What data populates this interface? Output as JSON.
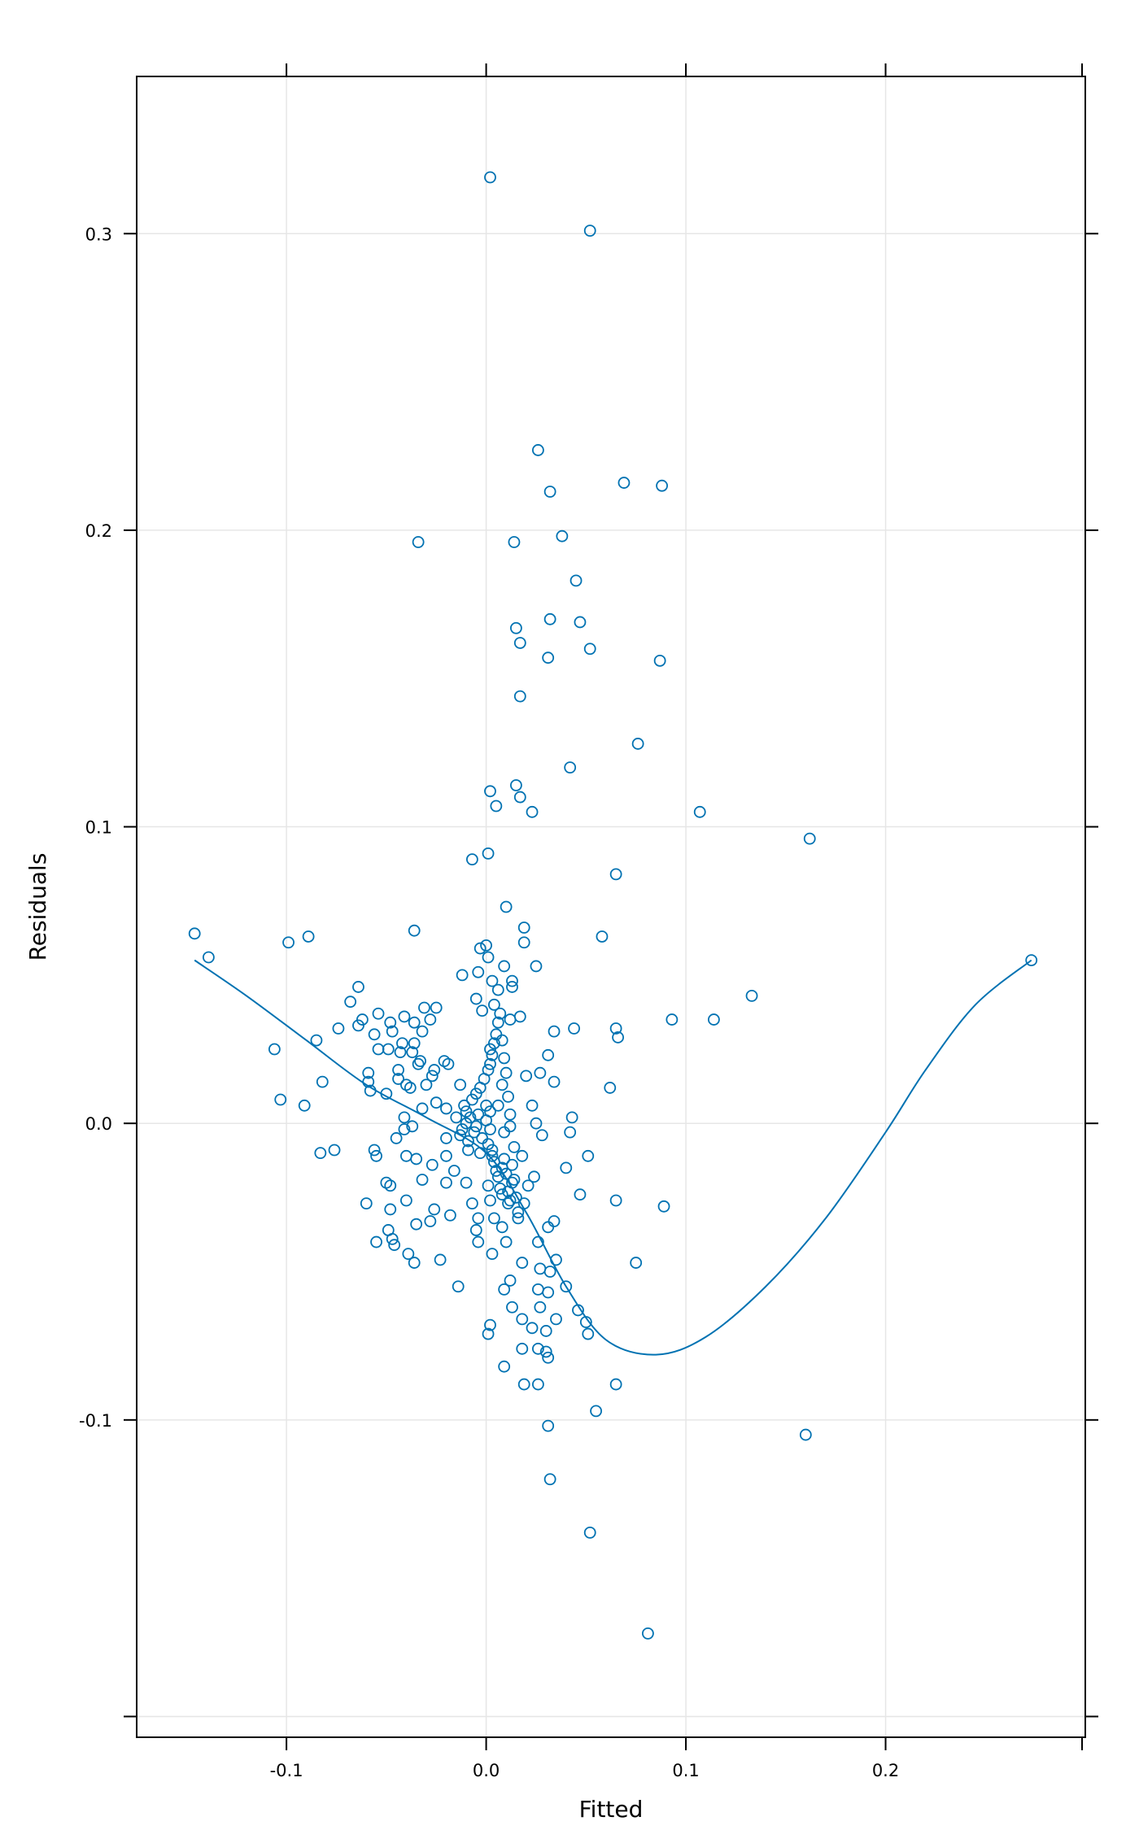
{
  "chart_data": {
    "type": "scatter",
    "xlabel": "Fitted",
    "ylabel": "Residuals",
    "xlim": [
      -0.175,
      0.3
    ],
    "ylim": [
      -0.207,
      0.353
    ],
    "x_ticks": [
      -0.1,
      0.0,
      0.1,
      0.2
    ],
    "x_tick_labels": [
      "-0.1",
      "0.0",
      "0.1",
      "0.2"
    ],
    "y_ticks": [
      -0.2,
      -0.1,
      0.0,
      0.1,
      0.2,
      0.3
    ],
    "y_tick_labels": [
      "",
      "-0.1",
      "0.0",
      "0.1",
      "0.2",
      "0.3"
    ],
    "grid": true,
    "point_color": "#0072b2",
    "line_color": "#0072b2",
    "series": [
      {
        "kind": "points",
        "points": [
          [
            0.002,
            0.319
          ],
          [
            0.052,
            0.301
          ],
          [
            0.026,
            0.227
          ],
          [
            0.069,
            0.216
          ],
          [
            0.088,
            0.215
          ],
          [
            0.032,
            0.213
          ],
          [
            -0.034,
            0.196
          ],
          [
            0.014,
            0.196
          ],
          [
            0.038,
            0.198
          ],
          [
            0.045,
            0.183
          ],
          [
            0.015,
            0.167
          ],
          [
            0.032,
            0.17
          ],
          [
            0.047,
            0.169
          ],
          [
            0.017,
            0.162
          ],
          [
            0.052,
            0.16
          ],
          [
            0.031,
            0.157
          ],
          [
            0.087,
            0.156
          ],
          [
            0.017,
            0.144
          ],
          [
            0.076,
            0.128
          ],
          [
            0.042,
            0.12
          ],
          [
            0.002,
            0.112
          ],
          [
            0.015,
            0.114
          ],
          [
            0.017,
            0.11
          ],
          [
            0.005,
            0.107
          ],
          [
            0.023,
            0.105
          ],
          [
            0.107,
            0.105
          ],
          [
            0.162,
            0.096
          ],
          [
            0.001,
            0.091
          ],
          [
            -0.007,
            0.089
          ],
          [
            0.065,
            0.084
          ],
          [
            0.01,
            0.073
          ],
          [
            0.019,
            0.066
          ],
          [
            -0.036,
            0.065
          ],
          [
            0.058,
            0.063
          ],
          [
            -0.146,
            0.064
          ],
          [
            -0.089,
            0.063
          ],
          [
            -0.099,
            0.061
          ],
          [
            0.019,
            0.061
          ],
          [
            -0.139,
            0.056
          ],
          [
            -0.003,
            0.059
          ],
          [
            0.0,
            0.06
          ],
          [
            0.001,
            0.056
          ],
          [
            0.273,
            0.055
          ],
          [
            0.009,
            0.053
          ],
          [
            0.025,
            0.053
          ],
          [
            -0.004,
            0.051
          ],
          [
            -0.012,
            0.05
          ],
          [
            0.003,
            0.048
          ],
          [
            0.013,
            0.048
          ],
          [
            0.006,
            0.045
          ],
          [
            0.013,
            0.046
          ],
          [
            0.133,
            0.043
          ],
          [
            -0.064,
            0.046
          ],
          [
            -0.005,
            0.042
          ],
          [
            -0.002,
            0.038
          ],
          [
            0.004,
            0.04
          ],
          [
            -0.068,
            0.041
          ],
          [
            -0.041,
            0.036
          ],
          [
            -0.031,
            0.039
          ],
          [
            -0.025,
            0.039
          ],
          [
            -0.054,
            0.037
          ],
          [
            -0.062,
            0.035
          ],
          [
            -0.064,
            0.033
          ],
          [
            -0.048,
            0.034
          ],
          [
            -0.074,
            0.032
          ],
          [
            -0.036,
            0.034
          ],
          [
            -0.028,
            0.035
          ],
          [
            0.093,
            0.035
          ],
          [
            0.114,
            0.035
          ],
          [
            0.012,
            0.035
          ],
          [
            0.017,
            0.036
          ],
          [
            0.044,
            0.032
          ],
          [
            0.034,
            0.031
          ],
          [
            0.065,
            0.032
          ],
          [
            0.066,
            0.029
          ],
          [
            -0.085,
            0.028
          ],
          [
            -0.056,
            0.03
          ],
          [
            -0.047,
            0.031
          ],
          [
            -0.032,
            0.031
          ],
          [
            -0.036,
            0.027
          ],
          [
            -0.042,
            0.027
          ],
          [
            -0.106,
            0.025
          ],
          [
            -0.054,
            0.025
          ],
          [
            -0.049,
            0.025
          ],
          [
            -0.043,
            0.024
          ],
          [
            -0.037,
            0.024
          ],
          [
            -0.021,
            0.021
          ],
          [
            -0.019,
            0.02
          ],
          [
            0.031,
            0.023
          ],
          [
            0.002,
            0.025
          ],
          [
            -0.059,
            0.017
          ],
          [
            -0.044,
            0.018
          ],
          [
            -0.026,
            0.018
          ],
          [
            -0.033,
            0.021
          ],
          [
            -0.034,
            0.02
          ],
          [
            -0.044,
            0.015
          ],
          [
            -0.027,
            0.016
          ],
          [
            -0.059,
            0.014
          ],
          [
            -0.04,
            0.013
          ],
          [
            -0.038,
            0.012
          ],
          [
            -0.03,
            0.013
          ],
          [
            -0.082,
            0.014
          ],
          [
            -0.058,
            0.011
          ],
          [
            -0.05,
            0.01
          ],
          [
            -0.013,
            0.013
          ],
          [
            0.008,
            0.013
          ],
          [
            0.02,
            0.016
          ],
          [
            0.027,
            0.017
          ],
          [
            0.034,
            0.014
          ],
          [
            0.062,
            0.012
          ],
          [
            -0.103,
            0.008
          ],
          [
            -0.091,
            0.006
          ],
          [
            -0.032,
            0.005
          ],
          [
            -0.025,
            0.007
          ],
          [
            -0.02,
            0.005
          ],
          [
            -0.01,
            0.004
          ],
          [
            0.0,
            0.006
          ],
          [
            0.006,
            0.006
          ],
          [
            0.012,
            0.003
          ],
          [
            0.023,
            0.006
          ],
          [
            -0.041,
            0.002
          ],
          [
            -0.041,
            -0.002
          ],
          [
            -0.037,
            -0.001
          ],
          [
            0.043,
            0.002
          ],
          [
            0.025,
            0.0
          ],
          [
            -0.02,
            -0.005
          ],
          [
            -0.012,
            -0.002
          ],
          [
            -0.005,
            -0.001
          ],
          [
            0.002,
            -0.002
          ],
          [
            0.009,
            -0.003
          ],
          [
            0.028,
            -0.004
          ],
          [
            0.042,
            -0.003
          ],
          [
            -0.045,
            -0.005
          ],
          [
            -0.083,
            -0.01
          ],
          [
            -0.076,
            -0.009
          ],
          [
            -0.056,
            -0.009
          ],
          [
            -0.055,
            -0.011
          ],
          [
            -0.04,
            -0.011
          ],
          [
            -0.035,
            -0.012
          ],
          [
            -0.02,
            -0.011
          ],
          [
            -0.009,
            -0.009
          ],
          [
            -0.003,
            -0.01
          ],
          [
            0.003,
            -0.011
          ],
          [
            0.014,
            -0.008
          ],
          [
            0.018,
            -0.011
          ],
          [
            0.051,
            -0.011
          ],
          [
            -0.027,
            -0.014
          ],
          [
            -0.016,
            -0.016
          ],
          [
            0.008,
            -0.015
          ],
          [
            0.04,
            -0.015
          ],
          [
            0.024,
            -0.018
          ],
          [
            -0.032,
            -0.019
          ],
          [
            -0.02,
            -0.02
          ],
          [
            -0.01,
            -0.02
          ],
          [
            0.001,
            -0.021
          ],
          [
            0.013,
            -0.02
          ],
          [
            0.021,
            -0.021
          ],
          [
            -0.05,
            -0.02
          ],
          [
            -0.048,
            -0.021
          ],
          [
            -0.06,
            -0.027
          ],
          [
            -0.04,
            -0.026
          ],
          [
            0.047,
            -0.024
          ],
          [
            0.065,
            -0.026
          ],
          [
            0.089,
            -0.028
          ],
          [
            -0.007,
            -0.027
          ],
          [
            0.002,
            -0.026
          ],
          [
            0.011,
            -0.027
          ],
          [
            0.019,
            -0.027
          ],
          [
            -0.026,
            -0.029
          ],
          [
            -0.048,
            -0.029
          ],
          [
            -0.035,
            -0.034
          ],
          [
            -0.018,
            -0.031
          ],
          [
            -0.004,
            -0.032
          ],
          [
            0.004,
            -0.032
          ],
          [
            0.016,
            -0.032
          ],
          [
            0.034,
            -0.033
          ],
          [
            -0.028,
            -0.033
          ],
          [
            -0.005,
            -0.036
          ],
          [
            0.008,
            -0.035
          ],
          [
            0.031,
            -0.035
          ],
          [
            -0.049,
            -0.036
          ],
          [
            -0.047,
            -0.039
          ],
          [
            -0.055,
            -0.04
          ],
          [
            -0.046,
            -0.041
          ],
          [
            -0.004,
            -0.04
          ],
          [
            0.01,
            -0.04
          ],
          [
            0.026,
            -0.04
          ],
          [
            -0.039,
            -0.044
          ],
          [
            -0.036,
            -0.047
          ],
          [
            -0.023,
            -0.046
          ],
          [
            0.003,
            -0.044
          ],
          [
            0.018,
            -0.047
          ],
          [
            0.035,
            -0.046
          ],
          [
            0.075,
            -0.047
          ],
          [
            0.027,
            -0.049
          ],
          [
            0.032,
            -0.05
          ],
          [
            0.012,
            -0.053
          ],
          [
            -0.014,
            -0.055
          ],
          [
            0.009,
            -0.056
          ],
          [
            0.026,
            -0.056
          ],
          [
            0.031,
            -0.057
          ],
          [
            0.04,
            -0.055
          ],
          [
            0.046,
            -0.063
          ],
          [
            0.013,
            -0.062
          ],
          [
            0.027,
            -0.062
          ],
          [
            0.035,
            -0.066
          ],
          [
            0.018,
            -0.066
          ],
          [
            0.05,
            -0.067
          ],
          [
            0.002,
            -0.068
          ],
          [
            0.023,
            -0.069
          ],
          [
            0.03,
            -0.07
          ],
          [
            0.001,
            -0.071
          ],
          [
            0.051,
            -0.071
          ],
          [
            0.018,
            -0.076
          ],
          [
            0.026,
            -0.076
          ],
          [
            0.03,
            -0.077
          ],
          [
            0.031,
            -0.079
          ],
          [
            0.009,
            -0.082
          ],
          [
            0.019,
            -0.088
          ],
          [
            0.026,
            -0.088
          ],
          [
            0.065,
            -0.088
          ],
          [
            0.055,
            -0.097
          ],
          [
            0.031,
            -0.102
          ],
          [
            0.16,
            -0.105
          ],
          [
            0.032,
            -0.12
          ],
          [
            0.052,
            -0.138
          ],
          [
            0.081,
            -0.172
          ],
          [
            -0.01,
            0.0
          ],
          [
            -0.008,
            0.002
          ],
          [
            -0.006,
            -0.003
          ],
          [
            -0.004,
            0.003
          ],
          [
            -0.002,
            -0.005
          ],
          [
            0.0,
            0.001
          ],
          [
            0.001,
            -0.007
          ],
          [
            0.002,
            0.004
          ],
          [
            0.003,
            -0.009
          ],
          [
            0.004,
            -0.013
          ],
          [
            0.005,
            -0.016
          ],
          [
            0.006,
            -0.018
          ],
          [
            0.007,
            -0.022
          ],
          [
            0.008,
            -0.024
          ],
          [
            0.009,
            -0.012
          ],
          [
            0.01,
            -0.017
          ],
          [
            0.011,
            -0.023
          ],
          [
            0.012,
            -0.026
          ],
          [
            0.013,
            -0.014
          ],
          [
            0.014,
            -0.019
          ],
          [
            0.015,
            -0.025
          ],
          [
            0.016,
            -0.03
          ],
          [
            -0.015,
            0.002
          ],
          [
            -0.013,
            -0.004
          ],
          [
            -0.011,
            0.006
          ],
          [
            -0.009,
            -0.006
          ],
          [
            -0.007,
            0.008
          ],
          [
            -0.005,
            0.01
          ],
          [
            -0.003,
            0.012
          ],
          [
            -0.001,
            0.015
          ],
          [
            0.001,
            0.018
          ],
          [
            0.002,
            0.02
          ],
          [
            0.003,
            0.023
          ],
          [
            0.004,
            0.027
          ],
          [
            0.005,
            0.03
          ],
          [
            0.006,
            0.034
          ],
          [
            0.007,
            0.037
          ],
          [
            0.008,
            0.028
          ],
          [
            0.009,
            0.022
          ],
          [
            0.01,
            0.017
          ],
          [
            0.011,
            0.009
          ],
          [
            0.012,
            -0.001
          ]
        ]
      },
      {
        "kind": "smooth",
        "points": [
          [
            -0.146,
            0.055
          ],
          [
            -0.12,
            0.043
          ],
          [
            -0.09,
            0.028
          ],
          [
            -0.06,
            0.013
          ],
          [
            -0.03,
            0.002
          ],
          [
            0.0,
            -0.01
          ],
          [
            0.02,
            -0.03
          ],
          [
            0.04,
            -0.055
          ],
          [
            0.06,
            -0.073
          ],
          [
            0.085,
            -0.078
          ],
          [
            0.11,
            -0.072
          ],
          [
            0.14,
            -0.055
          ],
          [
            0.17,
            -0.032
          ],
          [
            0.2,
            -0.003
          ],
          [
            0.22,
            0.018
          ],
          [
            0.245,
            0.04
          ],
          [
            0.273,
            0.055
          ]
        ]
      }
    ]
  }
}
